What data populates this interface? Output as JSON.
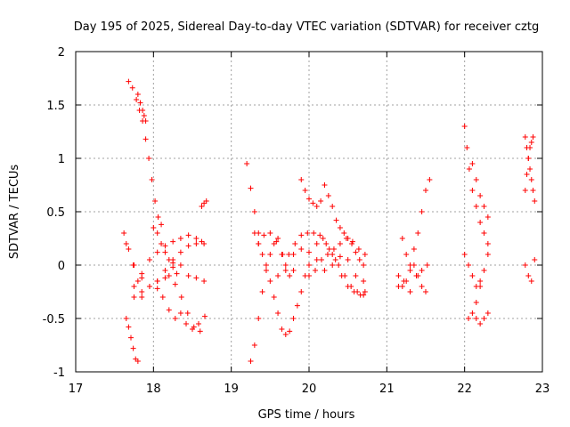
{
  "chart_data": {
    "type": "scatter",
    "title": "Day 195 of 2025, Sidereal Day-to-day VTEC variation (SDTVAR) for receiver cztg",
    "xlabel": "GPS time / hours",
    "ylabel": "SDTVAR / TECUs",
    "xlim": [
      17,
      23
    ],
    "ylim": [
      -1,
      2
    ],
    "xticks": [
      "17",
      "18",
      "19",
      "20",
      "21",
      "22",
      "23"
    ],
    "yticks": [
      "-1",
      "-0.5",
      "0",
      "0.5",
      "1",
      "1.5",
      "2"
    ],
    "grid": true,
    "marker": "+",
    "color": "#ff0000",
    "tracks": [
      {
        "x": [
          17.68,
          17.73,
          17.78,
          17.82,
          17.86,
          17.9,
          17.94,
          17.98,
          18.02,
          18.06,
          18.1
        ],
        "y": [
          1.72,
          1.66,
          1.55,
          1.45,
          1.35,
          1.18,
          1.0,
          0.8,
          0.6,
          0.45,
          0.38
        ]
      },
      {
        "x": [
          17.8,
          17.83,
          17.86,
          17.88,
          17.9
        ],
        "y": [
          1.6,
          1.52,
          1.45,
          1.4,
          1.35
        ]
      },
      {
        "x": [
          17.65,
          17.68,
          17.71,
          17.74,
          17.77,
          17.8
        ],
        "y": [
          -0.5,
          -0.58,
          -0.68,
          -0.78,
          -0.88,
          -0.9
        ]
      },
      {
        "x": [
          17.65,
          17.75,
          17.85,
          17.95,
          18.05,
          18.15,
          18.25,
          18.35,
          18.45,
          18.55,
          18.62
        ],
        "y": [
          0.2,
          0.0,
          -0.12,
          -0.2,
          -0.22,
          -0.12,
          0.02,
          0.12,
          0.18,
          0.2,
          0.22
        ]
      },
      {
        "x": [
          17.75,
          17.85,
          17.95,
          18.05,
          18.15,
          18.25,
          18.35,
          18.45,
          18.55,
          18.65
        ],
        "y": [
          -0.2,
          -0.08,
          0.05,
          0.12,
          0.18,
          0.22,
          0.25,
          0.28,
          0.25,
          0.2
        ]
      },
      {
        "x": [
          17.75,
          17.85,
          17.95,
          18.05,
          18.15,
          18.25,
          18.35,
          18.45,
          18.55,
          18.65
        ],
        "y": [
          -0.3,
          -0.25,
          -0.2,
          -0.15,
          -0.05,
          0.05,
          0.0,
          -0.1,
          -0.12,
          -0.15
        ]
      },
      {
        "x": [
          18.0,
          18.05,
          18.1,
          18.15,
          18.2,
          18.25,
          18.3
        ],
        "y": [
          0.35,
          0.3,
          0.2,
          0.12,
          0.05,
          -0.02,
          -0.08
        ]
      },
      {
        "x": [
          18.05,
          18.12,
          18.2,
          18.28,
          18.35,
          18.42,
          18.5,
          18.58,
          18.66
        ],
        "y": [
          -0.15,
          -0.3,
          -0.42,
          -0.5,
          -0.45,
          -0.55,
          -0.6,
          -0.55,
          -0.48
        ]
      },
      {
        "x": [
          18.2,
          18.28,
          18.36,
          18.44,
          18.52,
          18.6
        ],
        "y": [
          -0.1,
          -0.18,
          -0.3,
          -0.45,
          -0.58,
          -0.62
        ]
      },
      {
        "x": [
          17.62,
          17.68,
          17.74,
          17.8,
          17.85
        ],
        "y": [
          0.3,
          0.15,
          0.0,
          -0.15,
          -0.3
        ]
      },
      {
        "x": [
          18.62,
          18.65,
          18.68
        ],
        "y": [
          0.55,
          0.58,
          0.6
        ]
      },
      {
        "x": [
          19.2,
          19.25,
          19.3,
          19.35
        ],
        "y": [
          0.95,
          0.72,
          0.5,
          0.3
        ]
      },
      {
        "x": [
          19.25,
          19.3,
          19.35,
          19.4,
          19.45,
          19.5,
          19.55,
          19.6,
          19.65,
          19.7,
          19.75,
          19.8
        ],
        "y": [
          -0.9,
          -0.75,
          -0.5,
          -0.25,
          -0.05,
          0.1,
          0.2,
          0.25,
          0.1,
          -0.05,
          -0.1,
          -0.05
        ]
      },
      {
        "x": [
          19.3,
          19.35,
          19.4,
          19.45,
          19.5,
          19.55,
          19.6,
          19.65,
          19.7,
          19.75,
          19.8,
          19.85,
          19.9,
          19.95,
          20.0
        ],
        "y": [
          0.3,
          0.2,
          0.1,
          0.0,
          -0.15,
          -0.3,
          -0.45,
          -0.6,
          -0.65,
          -0.62,
          -0.5,
          -0.38,
          -0.25,
          -0.1,
          0.0
        ]
      },
      {
        "x": [
          19.35,
          19.42,
          19.5,
          19.58,
          19.66,
          19.74,
          19.82,
          19.9,
          19.98,
          20.06,
          20.14,
          20.22,
          20.3,
          20.38,
          20.46,
          20.54,
          20.62,
          20.7
        ],
        "y": [
          0.2,
          0.28,
          0.3,
          0.22,
          0.1,
          0.1,
          0.2,
          0.28,
          0.3,
          0.3,
          0.28,
          0.2,
          0.1,
          0.0,
          -0.1,
          -0.2,
          -0.25,
          -0.28
        ]
      },
      {
        "x": [
          19.6,
          19.7,
          19.8,
          19.9,
          20.0,
          20.1,
          20.2,
          20.3,
          20.4,
          20.5,
          20.6,
          20.7
        ],
        "y": [
          -0.1,
          0.0,
          0.1,
          0.15,
          0.12,
          0.05,
          -0.05,
          0.0,
          0.08,
          0.05,
          -0.1,
          -0.15
        ]
      },
      {
        "x": [
          19.9,
          19.95,
          20.0,
          20.05,
          20.1,
          20.15,
          20.2,
          20.25,
          20.3,
          20.35,
          20.4,
          20.45,
          20.5,
          20.55,
          20.6,
          20.65,
          20.7
        ],
        "y": [
          0.8,
          0.7,
          0.62,
          0.58,
          0.55,
          0.6,
          0.75,
          0.65,
          0.55,
          0.42,
          0.35,
          0.3,
          0.25,
          0.2,
          0.12,
          0.05,
          0.0
        ]
      },
      {
        "x": [
          20.0,
          20.08,
          20.16,
          20.24,
          20.32,
          20.4,
          20.48,
          20.56,
          20.64,
          20.72
        ],
        "y": [
          -0.1,
          -0.05,
          0.05,
          0.1,
          0.15,
          0.2,
          0.25,
          0.22,
          0.15,
          0.1
        ]
      },
      {
        "x": [
          20.1,
          20.18,
          20.26,
          20.34,
          20.42,
          20.5,
          20.58,
          20.66,
          20.72
        ],
        "y": [
          0.2,
          0.25,
          0.15,
          0.05,
          -0.1,
          -0.2,
          -0.25,
          -0.28,
          -0.25
        ]
      },
      {
        "x": [
          21.15,
          21.2,
          21.25,
          21.3,
          21.35,
          21.4,
          21.45,
          21.5
        ],
        "y": [
          -0.1,
          -0.2,
          -0.15,
          -0.05,
          0.0,
          -0.1,
          -0.2,
          -0.25
        ]
      },
      {
        "x": [
          21.2,
          21.25,
          21.3,
          21.35,
          21.4,
          21.45,
          21.5,
          21.55
        ],
        "y": [
          0.25,
          0.1,
          0.0,
          0.15,
          0.3,
          0.5,
          0.7,
          0.8
        ]
      },
      {
        "x": [
          21.15,
          21.22,
          21.3,
          21.38,
          21.45,
          21.52
        ],
        "y": [
          -0.2,
          -0.15,
          -0.25,
          -0.1,
          -0.05,
          0.0
        ]
      },
      {
        "x": [
          22.0,
          22.03,
          22.06,
          22.1,
          22.15,
          22.2,
          22.25,
          22.3
        ],
        "y": [
          1.3,
          1.1,
          0.9,
          0.7,
          0.55,
          0.4,
          0.3,
          0.2
        ]
      },
      {
        "x": [
          22.05,
          22.1,
          22.15,
          22.2,
          22.25,
          22.3
        ],
        "y": [
          -0.5,
          -0.45,
          -0.35,
          -0.2,
          -0.05,
          0.1
        ]
      },
      {
        "x": [
          22.1,
          22.15,
          22.2,
          22.25,
          22.3
        ],
        "y": [
          0.95,
          0.8,
          0.65,
          0.55,
          0.45
        ]
      },
      {
        "x": [
          22.0,
          22.05,
          22.1,
          22.15,
          22.2
        ],
        "y": [
          0.1,
          0.0,
          -0.1,
          -0.2,
          -0.15
        ]
      },
      {
        "x": [
          22.15,
          22.2,
          22.25,
          22.3
        ],
        "y": [
          -0.5,
          -0.55,
          -0.5,
          -0.45
        ]
      },
      {
        "x": [
          22.78,
          22.8,
          22.82,
          22.84,
          22.86,
          22.88,
          22.9
        ],
        "y": [
          1.2,
          1.1,
          1.0,
          0.9,
          0.8,
          0.7,
          0.6
        ]
      },
      {
        "x": [
          22.78,
          22.8,
          22.82,
          22.84,
          22.86,
          22.88
        ],
        "y": [
          0.7,
          0.85,
          1.0,
          1.1,
          1.15,
          1.2
        ]
      },
      {
        "x": [
          22.78,
          22.82,
          22.86,
          22.9
        ],
        "y": [
          0.0,
          -0.1,
          -0.15,
          0.05
        ]
      }
    ]
  }
}
